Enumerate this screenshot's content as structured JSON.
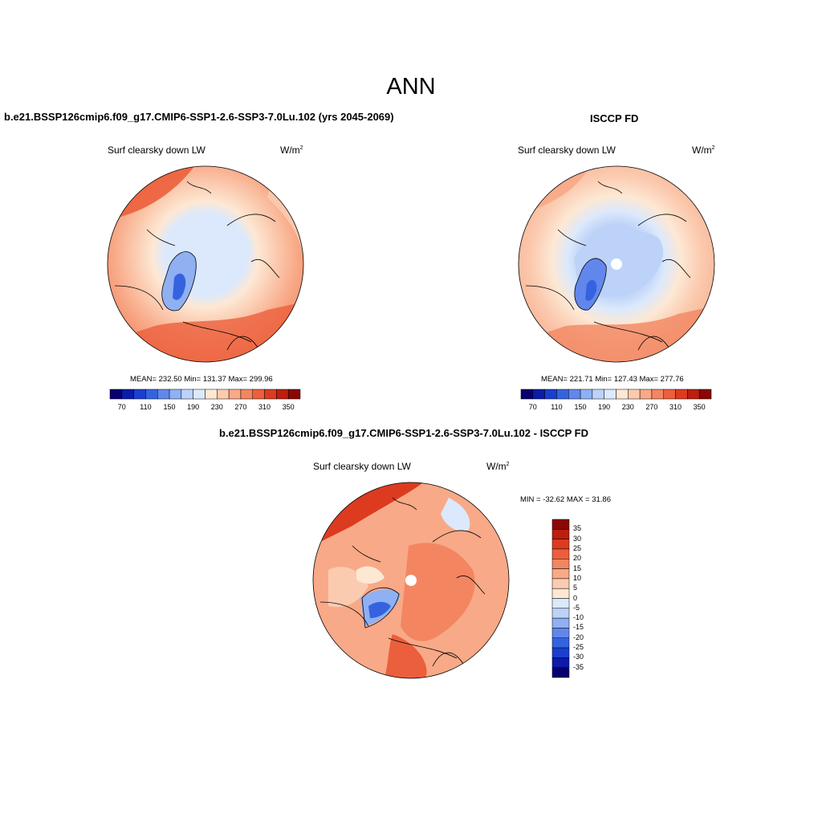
{
  "page": {
    "title": "ANN"
  },
  "panels": [
    {
      "id": "model",
      "title": "b.e21.BSSP126cmip6.f09_g17.CMIP6-SSP1-2.6-SSP3-7.0Lu.102 (yrs 2045-2069)",
      "variable": "Surf clearsky down LW",
      "units": "W/m",
      "units_sup": "2",
      "stats": "MEAN= 232.50  Min= 131.37  Max= 299.96"
    },
    {
      "id": "obs",
      "title": "ISCCP FD",
      "variable": "Surf clearsky down LW",
      "units": "W/m",
      "units_sup": "2",
      "stats": "MEAN= 221.71  Min= 127.43  Max= 277.76"
    },
    {
      "id": "diff",
      "title": "b.e21.BSSP126cmip6.f09_g17.CMIP6-SSP1-2.6-SSP3-7.0Lu.102 - ISCCP FD",
      "variable": "Surf clearsky down LW",
      "units": "W/m",
      "units_sup": "2",
      "stats": "MIN = -32.62 MAX =  31.86"
    }
  ],
  "colorbars": {
    "abs": {
      "colors": [
        "#08006e",
        "#0c1ba8",
        "#1a3fd0",
        "#3563e0",
        "#6287ec",
        "#8fb0f2",
        "#bdd2f8",
        "#dce9fc",
        "#fde8d4",
        "#fbcbb0",
        "#f8a987",
        "#f38661",
        "#ec5f3c",
        "#dc3b20",
        "#bc1e10",
        "#8b0605"
      ],
      "labels": [
        "70",
        "110",
        "150",
        "190",
        "230",
        "270",
        "310",
        "350"
      ]
    },
    "diff": {
      "colors": [
        "#08006e",
        "#0c1ba8",
        "#1a3fd0",
        "#3563e0",
        "#6287ec",
        "#8fb0f2",
        "#bdd2f8",
        "#dce9fc",
        "#fde8d4",
        "#fbcbb0",
        "#f8a987",
        "#f38661",
        "#ec5f3c",
        "#dc3b20",
        "#bc1e10",
        "#8b0605"
      ],
      "labels": [
        "35",
        "30",
        "25",
        "20",
        "15",
        "10",
        "5",
        "0",
        "-5",
        "-10",
        "-15",
        "-20",
        "-25",
        "-30",
        "-35"
      ]
    }
  }
}
